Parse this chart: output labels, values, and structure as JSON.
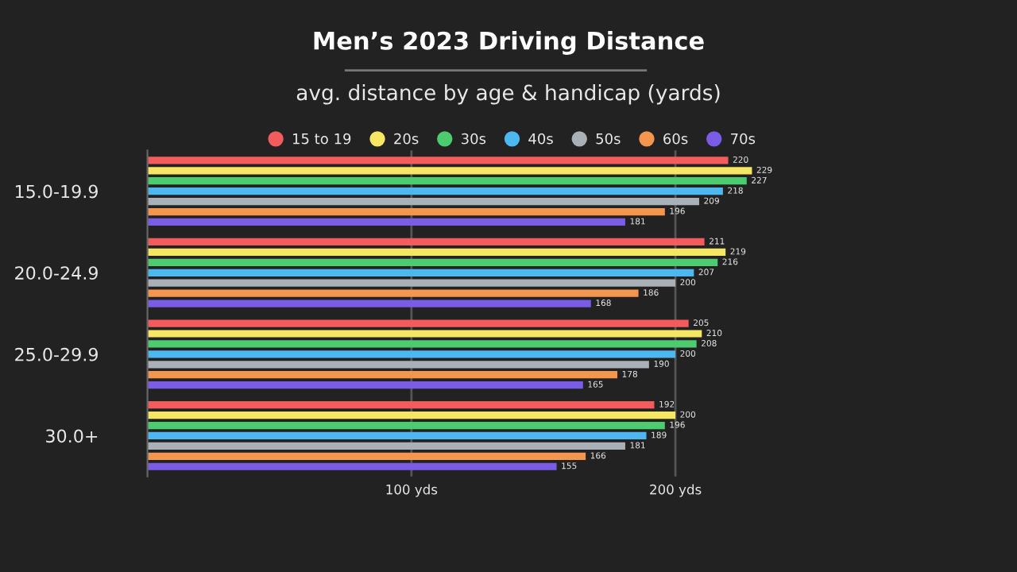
{
  "chart_data": {
    "type": "bar",
    "orientation": "horizontal",
    "title": "Men’s 2023 Driving Distance",
    "subtitle": "avg. distance by age & handicap (yards)",
    "categories": [
      "15.0-19.9",
      "20.0-24.9",
      "25.0-29.9",
      "30.0+"
    ],
    "series": [
      {
        "name": "15 to 19",
        "color": "#f25c5c",
        "values": [
          220,
          211,
          205,
          192
        ]
      },
      {
        "name": "20s",
        "color": "#f5e663",
        "values": [
          229,
          219,
          210,
          200
        ]
      },
      {
        "name": "30s",
        "color": "#4ccc6e",
        "values": [
          227,
          216,
          208,
          196
        ]
      },
      {
        "name": "40s",
        "color": "#4db8f0",
        "values": [
          218,
          207,
          200,
          189
        ]
      },
      {
        "name": "50s",
        "color": "#a9b0b8",
        "values": [
          209,
          200,
          190,
          181
        ]
      },
      {
        "name": "60s",
        "color": "#f5964f",
        "values": [
          196,
          186,
          178,
          166
        ]
      },
      {
        "name": "70s",
        "color": "#7a5ce6",
        "values": [
          181,
          168,
          165,
          155
        ]
      }
    ],
    "xlim": [
      0,
      230
    ],
    "xticks": [
      {
        "value": 100,
        "label": "100 yds"
      },
      {
        "value": 200,
        "label": "200 yds"
      }
    ],
    "grid": "x",
    "legend": "top",
    "data_labels": true
  }
}
